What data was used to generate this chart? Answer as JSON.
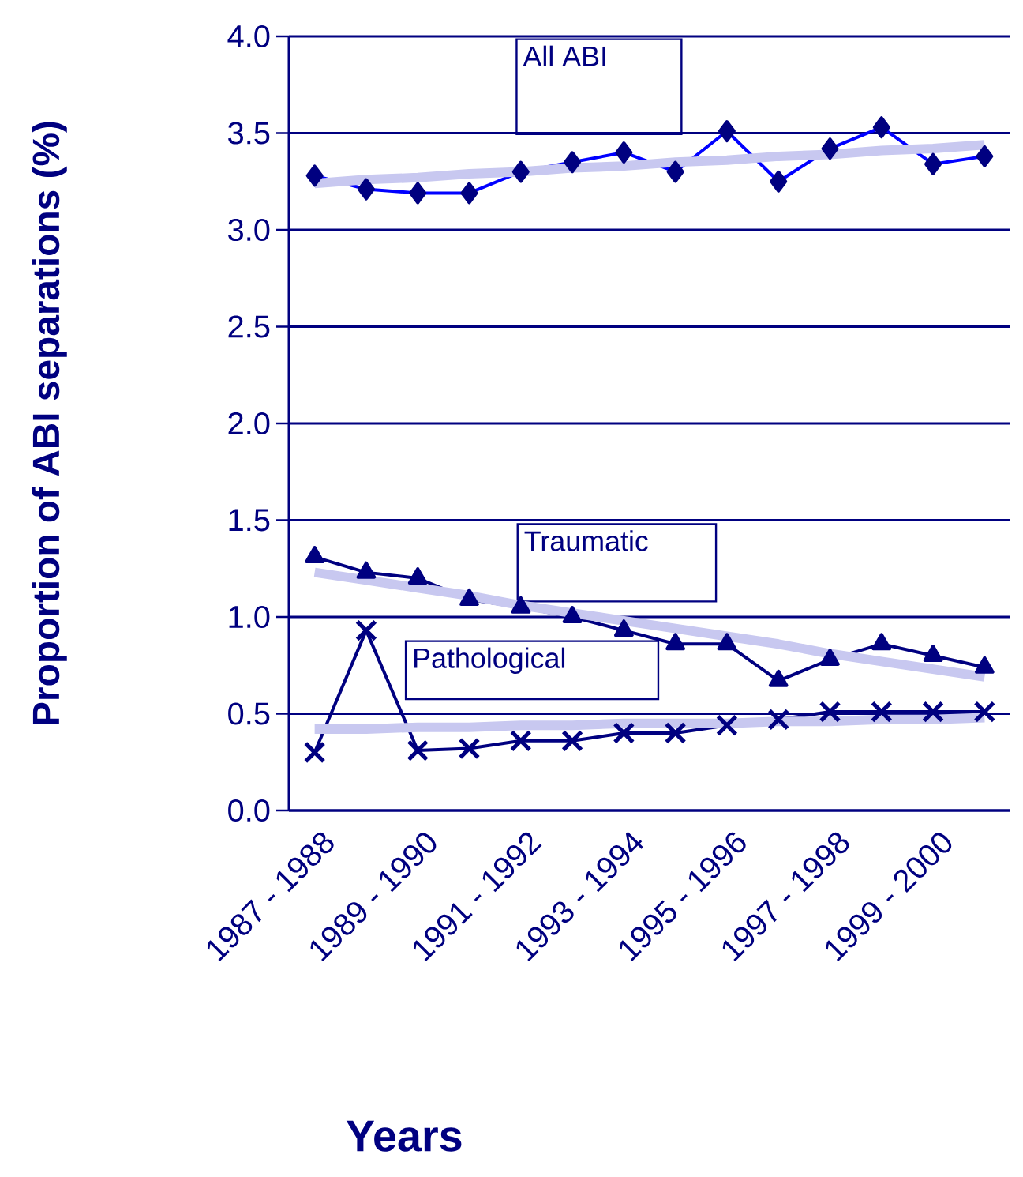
{
  "chart_data": {
    "type": "line",
    "xlabel": "Years",
    "ylabel": "Proportion of ABI separations (%)",
    "categories": [
      "1987 - 1988",
      null,
      "1989 - 1990",
      null,
      "1991 - 1992",
      null,
      "1993 - 1994",
      null,
      "1995 - 1996",
      null,
      "1997 - 1998",
      null,
      "1999 - 2000",
      null
    ],
    "series": [
      {
        "name": "All ABI",
        "color": "#0000ff",
        "marker": "diamond",
        "values": [
          3.28,
          3.21,
          3.19,
          3.19,
          3.3,
          3.35,
          3.4,
          3.3,
          3.51,
          3.25,
          3.42,
          3.53,
          3.34,
          3.38
        ]
      },
      {
        "name": "Traumatic",
        "color": "#000080",
        "marker": "triangle",
        "values": [
          1.31,
          1.23,
          1.2,
          1.09,
          1.05,
          1.0,
          0.93,
          0.86,
          0.86,
          0.67,
          0.78,
          0.86,
          0.8,
          0.74
        ]
      },
      {
        "name": "Pathological",
        "color": "#000080",
        "marker": "cross",
        "values": [
          0.3,
          0.93,
          0.31,
          0.32,
          0.36,
          0.36,
          0.4,
          0.4,
          0.44,
          0.47,
          0.51,
          0.51,
          0.51,
          0.51
        ]
      },
      {
        "color": "#c8c8f0",
        "marker": "none",
        "values": [
          3.24,
          3.26,
          3.27,
          3.29,
          3.3,
          3.32,
          3.33,
          3.35,
          3.36,
          3.38,
          3.39,
          3.41,
          3.42,
          3.44
        ]
      },
      {
        "color": "#c8c8f0",
        "marker": "none",
        "values": [
          1.23,
          1.19,
          1.15,
          1.11,
          1.06,
          1.02,
          0.98,
          0.94,
          0.9,
          0.86,
          0.81,
          0.77,
          0.73,
          0.69
        ]
      },
      {
        "color": "#c8c8f0",
        "marker": "none",
        "values": [
          0.42,
          0.42,
          0.43,
          0.43,
          0.44,
          0.44,
          0.45,
          0.45,
          0.45,
          0.46,
          0.46,
          0.47,
          0.47,
          0.48
        ]
      }
    ],
    "ylim": [
      0,
      4.0
    ],
    "yticks": [
      {
        "value": 0,
        "label": "0.0"
      },
      {
        "value": 0.5,
        "label": "0.5"
      },
      {
        "value": 1.0,
        "label": "1.0"
      },
      {
        "value": 1.5,
        "label": "1.5"
      },
      {
        "value": 2.0,
        "label": "2.0"
      },
      {
        "value": 2.5,
        "label": "2.5"
      },
      {
        "value": 3.0,
        "label": "3.0"
      },
      {
        "value": 3.5,
        "label": "3.5"
      },
      {
        "value": 4.0,
        "label": "4.0"
      }
    ],
    "grid": "y",
    "legend": false
  }
}
